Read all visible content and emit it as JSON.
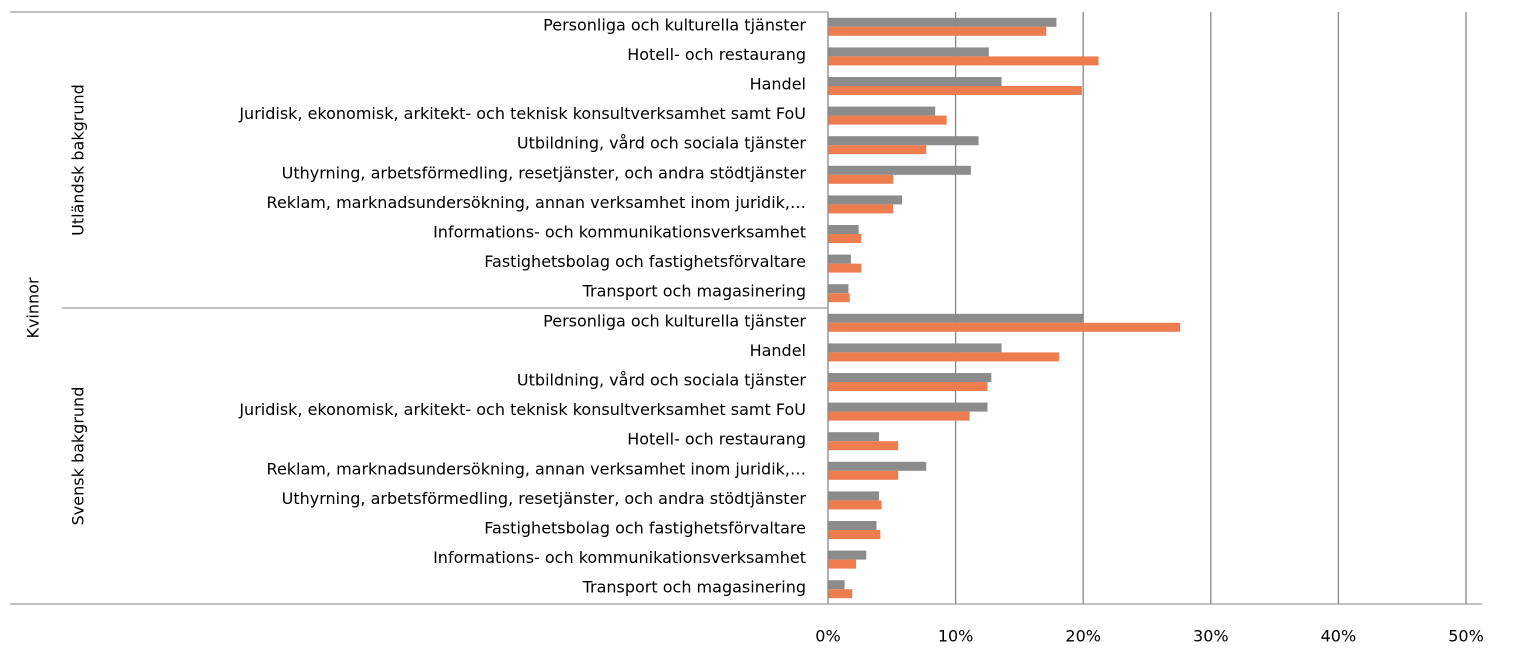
{
  "chart_data": {
    "type": "bar",
    "orientation": "horizontal",
    "outer_label": "Kvinnor",
    "groups": [
      {
        "label": "Utländsk bakgrund",
        "categories": [
          "Personliga och kulturella tjänster",
          "Hotell- och restaurang",
          "Handel",
          "Juridisk, ekonomisk, arkitekt- och teknisk konsultverksamhet samt FoU",
          "Utbildning, vård och sociala tjänster",
          "Uthyrning, arbetsförmedling, resetjänster, och andra stödtjänster",
          "Reklam, marknadsundersökning, annan verksamhet inom juridik,…",
          "Informations- och kommunikationsverksamhet",
          "Fastighetsbolag och fastighetsförvaltare",
          "Transport och magasinering"
        ]
      },
      {
        "label": "Svensk bakgrund",
        "categories": [
          "Personliga och kulturella tjänster",
          "Handel",
          "Utbildning, vård och sociala tjänster",
          "Juridisk, ekonomisk, arkitekt- och teknisk konsultverksamhet samt FoU",
          "Hotell- och restaurang",
          "Reklam, marknadsundersökning, annan verksamhet inom juridik,…",
          "Uthyrning, arbetsförmedling, resetjänster, och andra stödtjänster",
          "Fastighetsbolag och fastighetsförvaltare",
          "Informations- och kommunikationsverksamhet",
          "Transport och magasinering"
        ]
      }
    ],
    "series": [
      {
        "color": "#8c8c8c",
        "values": [
          17.9,
          12.6,
          13.6,
          8.4,
          11.8,
          11.2,
          5.8,
          2.4,
          1.8,
          1.6,
          20.0,
          13.6,
          12.8,
          12.5,
          4.0,
          7.7,
          4.0,
          3.8,
          3.0,
          1.3
        ]
      },
      {
        "color": "#ed7d4f",
        "values": [
          17.1,
          21.2,
          19.9,
          9.3,
          7.7,
          5.1,
          5.1,
          2.6,
          2.6,
          1.7,
          27.6,
          18.1,
          12.5,
          11.1,
          5.5,
          5.5,
          4.2,
          4.1,
          2.2,
          1.9
        ]
      }
    ],
    "xlim": [
      0,
      50
    ],
    "xticks": [
      {
        "value": 0,
        "label": "0%"
      },
      {
        "value": 10,
        "label": "10%"
      },
      {
        "value": 20,
        "label": "20%"
      },
      {
        "value": 30,
        "label": "30%"
      },
      {
        "value": 40,
        "label": "40%"
      },
      {
        "value": 50,
        "label": "50%"
      }
    ],
    "grid": true
  }
}
